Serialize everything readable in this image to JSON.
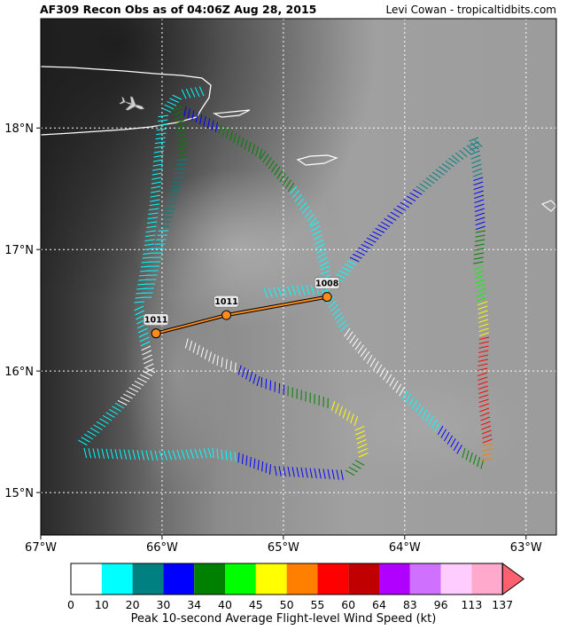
{
  "header": {
    "title": "AF309 Recon Obs as of 04:06Z Aug 28, 2015",
    "credit": "Levi Cowan - tropicaltidbits.com"
  },
  "map": {
    "lon_range": [
      -67.0,
      -62.75
    ],
    "lat_range": [
      14.65,
      18.9
    ],
    "lon_ticks": [
      -67,
      -66,
      -65,
      -64,
      -63
    ],
    "lon_tick_labels": [
      "67°W",
      "66°W",
      "65°W",
      "64°W",
      "63°W"
    ],
    "lat_ticks": [
      15,
      16,
      17,
      18
    ],
    "lat_tick_labels": [
      "15°N",
      "16°N",
      "17°N",
      "18°N"
    ],
    "grid": true,
    "aircraft_icon": "airplane-icon"
  },
  "center_fixes": [
    {
      "label": "1011",
      "lon": -66.05,
      "lat": 16.31
    },
    {
      "label": "1011",
      "lon": -65.47,
      "lat": 16.46
    },
    {
      "label": "1008",
      "lon": -64.64,
      "lat": 16.61
    }
  ],
  "colorbar": {
    "ticks": [
      "0",
      "10",
      "20",
      "30",
      "34",
      "40",
      "45",
      "50",
      "55",
      "60",
      "64",
      "83",
      "96",
      "113",
      "137"
    ],
    "colors": [
      "#ffffff",
      "#00ffff",
      "#008080",
      "#0000ff",
      "#008000",
      "#00ff00",
      "#ffff00",
      "#ff8000",
      "#ff0000",
      "#c00000",
      "#b000ff",
      "#d070ff",
      "#ffccff",
      "#ffaacc",
      "#ff6070"
    ],
    "caption": "Peak 10-second Average Flight-level Wind Speed (kt)"
  }
}
